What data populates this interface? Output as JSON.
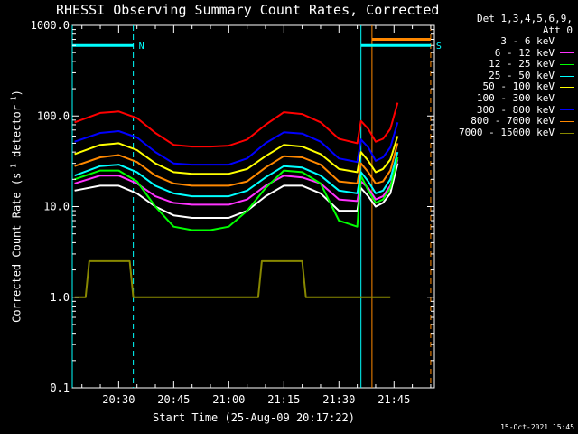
{
  "chart_data": {
    "type": "line",
    "title": "RHESSI Observing Summary Count Rates, Corrected",
    "detectors_line1": "Det 1,3,4,5,6,9,",
    "detectors_line2": "Att 0",
    "xlabel": "Start Time (25-Aug-09 20:17:22)",
    "ylabel_main": "Corrected Count Rate (s",
    "ylabel_sup1": "-1",
    "ylabel_mid": " detector",
    "ylabel_sup2": "-1",
    "ylabel_end": ")",
    "yscale": "log",
    "ylim": [
      0.1,
      1000
    ],
    "y_tick_values": [
      0.1,
      1,
      10,
      100,
      1000
    ],
    "y_ticks": [
      "0.1",
      "1.0",
      "10.0",
      "100.0",
      "1000.0"
    ],
    "xlim": [
      "20:17:22",
      "21:56:00"
    ],
    "x_ticks": [
      "20:30",
      "20:45",
      "21:00",
      "21:15",
      "21:30",
      "21:45"
    ],
    "x_tick_values": [
      "20:30",
      "20:45",
      "21:00",
      "21:15",
      "21:30",
      "21:45"
    ],
    "grid": false,
    "legend_placement": "right",
    "series": [
      {
        "name": "3 - 6 keV",
        "color": "#ffffff",
        "x": [
          "20:18",
          "20:25",
          "20:30",
          "20:35",
          "20:40",
          "20:45",
          "20:50",
          "20:55",
          "21:00",
          "21:05",
          "21:10",
          "21:15",
          "21:20",
          "21:25",
          "21:30",
          "21:35",
          "21:36",
          "21:38",
          "21:40",
          "21:42",
          "21:44",
          "21:46"
        ],
        "y": [
          15,
          17,
          17,
          14,
          10,
          8,
          7.5,
          7.5,
          7.5,
          9,
          13,
          17,
          17,
          14,
          9,
          9,
          16,
          13,
          10,
          11,
          14,
          30
        ]
      },
      {
        "name": "6 - 12 keV",
        "color": "#ff33ff",
        "x": [
          "20:18",
          "20:25",
          "20:30",
          "20:35",
          "20:40",
          "20:45",
          "20:50",
          "20:55",
          "21:00",
          "21:05",
          "21:10",
          "21:15",
          "21:20",
          "21:25",
          "21:30",
          "21:35",
          "21:36",
          "21:38",
          "21:40",
          "21:42",
          "21:44",
          "21:46"
        ],
        "y": [
          18,
          22,
          22,
          18,
          13,
          11,
          10.5,
          10.5,
          10.5,
          12,
          17,
          22,
          21,
          18,
          12,
          11.5,
          19,
          16,
          12,
          13,
          17,
          33
        ]
      },
      {
        "name": "12 - 25 keV",
        "color": "#00ff00",
        "x": [
          "20:18",
          "20:25",
          "20:30",
          "20:35",
          "20:40",
          "20:45",
          "20:50",
          "20:55",
          "21:00",
          "21:05",
          "21:10",
          "21:15",
          "21:20",
          "21:25",
          "21:30",
          "21:35",
          "21:36",
          "21:38",
          "21:40",
          "21:42",
          "21:44",
          "21:46"
        ],
        "y": [
          20,
          25,
          25,
          19,
          10,
          6,
          5.5,
          5.5,
          6,
          9,
          16,
          25,
          24,
          18,
          7,
          6,
          22,
          15,
          11,
          12,
          16,
          35
        ]
      },
      {
        "name": "25 - 50 keV",
        "color": "#00ffff",
        "x": [
          "20:18",
          "20:25",
          "20:30",
          "20:35",
          "20:40",
          "20:45",
          "20:50",
          "20:55",
          "21:00",
          "21:05",
          "21:10",
          "21:15",
          "21:20",
          "21:25",
          "21:30",
          "21:35",
          "21:36",
          "21:38",
          "21:40",
          "21:42",
          "21:44",
          "21:46"
        ],
        "y": [
          22,
          28,
          29,
          24,
          17,
          14,
          13,
          13,
          13,
          15,
          21,
          28,
          27,
          22,
          15,
          14,
          24,
          19,
          14,
          15,
          20,
          40
        ]
      },
      {
        "name": "50 - 100 keV",
        "color": "#ffff00",
        "x": [
          "20:18",
          "20:25",
          "20:30",
          "20:35",
          "20:40",
          "20:45",
          "20:50",
          "20:55",
          "21:00",
          "21:05",
          "21:10",
          "21:15",
          "21:20",
          "21:25",
          "21:30",
          "21:35",
          "21:36",
          "21:38",
          "21:40",
          "21:42",
          "21:44",
          "21:46"
        ],
        "y": [
          38,
          48,
          50,
          42,
          30,
          24,
          23,
          23,
          23,
          26,
          36,
          48,
          46,
          38,
          26,
          24,
          40,
          32,
          24,
          26,
          33,
          60
        ]
      },
      {
        "name": "100 - 300 keV",
        "color": "#ff0000",
        "x": [
          "20:18",
          "20:25",
          "20:30",
          "20:35",
          "20:40",
          "20:45",
          "20:50",
          "20:55",
          "21:00",
          "21:05",
          "21:10",
          "21:15",
          "21:20",
          "21:25",
          "21:30",
          "21:35",
          "21:36",
          "21:38",
          "21:40",
          "21:42",
          "21:44",
          "21:46"
        ],
        "y": [
          85,
          108,
          112,
          95,
          65,
          48,
          46,
          46,
          47,
          55,
          80,
          110,
          105,
          85,
          56,
          50,
          88,
          72,
          52,
          56,
          72,
          140
        ]
      },
      {
        "name": "300 - 800 keV",
        "color": "#0000ff",
        "x": [
          "20:18",
          "20:25",
          "20:30",
          "20:35",
          "20:40",
          "20:45",
          "20:50",
          "20:55",
          "21:00",
          "21:05",
          "21:10",
          "21:15",
          "21:20",
          "21:25",
          "21:30",
          "21:35",
          "21:36",
          "21:38",
          "21:40",
          "21:42",
          "21:44",
          "21:46"
        ],
        "y": [
          52,
          65,
          68,
          58,
          40,
          30,
          29,
          29,
          29,
          34,
          50,
          66,
          64,
          52,
          34,
          31,
          55,
          45,
          32,
          35,
          45,
          85
        ]
      },
      {
        "name": "800 - 7000 keV",
        "color": "#ff8800",
        "x": [
          "20:18",
          "20:25",
          "20:30",
          "20:35",
          "20:40",
          "20:45",
          "20:50",
          "20:55",
          "21:00",
          "21:05",
          "21:10",
          "21:15",
          "21:20",
          "21:25",
          "21:30",
          "21:35",
          "21:36",
          "21:38",
          "21:40",
          "21:42",
          "21:44",
          "21:46"
        ],
        "y": [
          28,
          35,
          37,
          31,
          22,
          18,
          17,
          17,
          17,
          19,
          27,
          36,
          35,
          29,
          19,
          18,
          30,
          24,
          18,
          19,
          25,
          50
        ]
      },
      {
        "name": "7000 - 15000 keV",
        "color": "#888800",
        "x": [
          "20:18",
          "20:21",
          "20:22",
          "20:33",
          "20:34",
          "20:35",
          "21:08",
          "21:09",
          "21:20",
          "21:21",
          "21:22",
          "21:42",
          "21:44"
        ],
        "y": [
          1,
          1,
          2.5,
          2.5,
          1,
          1,
          1,
          2.5,
          2.5,
          1,
          1,
          1,
          1
        ]
      }
    ],
    "annotations": [
      {
        "label": "N",
        "color": "#00ffff",
        "x_start": "20:17:22",
        "x_end": "20:34",
        "level": 600
      },
      {
        "label": "S",
        "color": "#00ffff",
        "x_start": "21:36",
        "x_end": "21:55",
        "level": 600
      },
      {
        "label": "",
        "color": "#ff8800",
        "x_start": "21:39",
        "x_end": "21:55",
        "level": 700
      }
    ],
    "vlines": [
      {
        "x": "20:17:22",
        "color": "#00ffff",
        "style": "solid"
      },
      {
        "x": "20:34",
        "color": "#00ffff",
        "style": "dashed"
      },
      {
        "x": "21:36",
        "color": "#00ffff",
        "style": "solid"
      },
      {
        "x": "21:39",
        "color": "#ff8800",
        "style": "solid"
      },
      {
        "x": "21:55",
        "color": "#ff8800",
        "style": "dashed"
      }
    ]
  },
  "footer": {
    "timestamp": "15-Oct-2021 15:45"
  }
}
